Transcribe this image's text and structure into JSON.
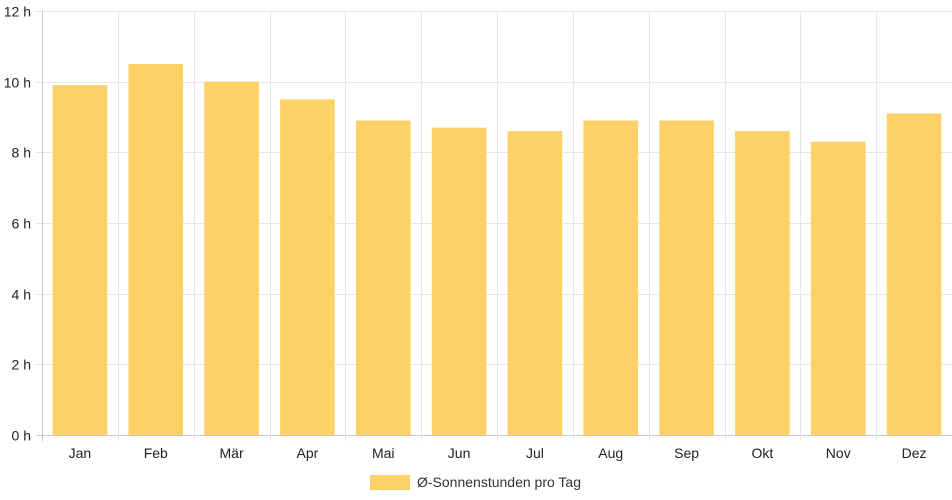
{
  "chart_data": {
    "type": "bar",
    "categories": [
      "Jan",
      "Feb",
      "Mär",
      "Apr",
      "Mai",
      "Jun",
      "Jul",
      "Aug",
      "Sep",
      "Okt",
      "Nov",
      "Dez"
    ],
    "series": [
      {
        "name": "Ø-Sonnenstunden pro Tag",
        "values": [
          9.9,
          10.5,
          10.0,
          9.5,
          8.9,
          8.7,
          8.6,
          8.9,
          8.9,
          8.6,
          8.3,
          9.1
        ],
        "color": "#fed166"
      }
    ],
    "ylim": [
      0,
      12
    ],
    "yticks": [
      0,
      2,
      4,
      6,
      8,
      10,
      12
    ],
    "y_unit_suffix": " h",
    "grid": true,
    "legend_position": "bottom",
    "grid_color": "#e6e6e6",
    "axis_color": "#c8c8c8"
  }
}
